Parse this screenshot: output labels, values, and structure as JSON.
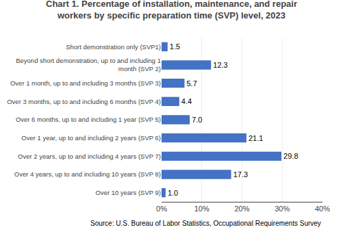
{
  "chart_data": {
    "type": "bar",
    "orientation": "horizontal",
    "title": "Chart 1. Percentage of installation, maintenance, and repair\nworkers by specific preparation time (SVP) level, 2023",
    "categories": [
      "Short demonstration only (SVP1)",
      "Beyond short demonstration, up to and including 1\nmonth (SVP 2)",
      "Over 1 month, up to and including 3 months (SVP 3)",
      "Over 3 months, up to and including 6 months (SVP 4)",
      "Over 6 months, up to and including 1 year (SVP 5)",
      "Over 1 year, up to and including 2 years (SVP 6)",
      "Over 2 years, up to and including 4 years (SVP 7)",
      "Over 4 years, up to and including 10 years (SVP 8)",
      "Over 10 years (SVP 9)"
    ],
    "values": [
      1.5,
      12.3,
      5.7,
      4.4,
      7.0,
      21.1,
      29.8,
      17.3,
      1.0
    ],
    "value_labels": [
      "1.5",
      "12.3",
      "5.7",
      "4.4",
      "7.0",
      "21.1",
      "29.8",
      "17.3",
      "1.0"
    ],
    "data_labels": true,
    "color": "#4472C4",
    "xlim": [
      0,
      40
    ],
    "xticks": [
      {
        "value": 0,
        "label": "0%"
      },
      {
        "value": 10,
        "label": "10%"
      },
      {
        "value": 20,
        "label": "20%"
      },
      {
        "value": 30,
        "label": "30%"
      },
      {
        "value": 40,
        "label": "40%"
      }
    ],
    "grid": true,
    "annotations": [
      "Source: U.S. Bureau of Labor Statistics, Occupational Requirements Survey"
    ]
  }
}
